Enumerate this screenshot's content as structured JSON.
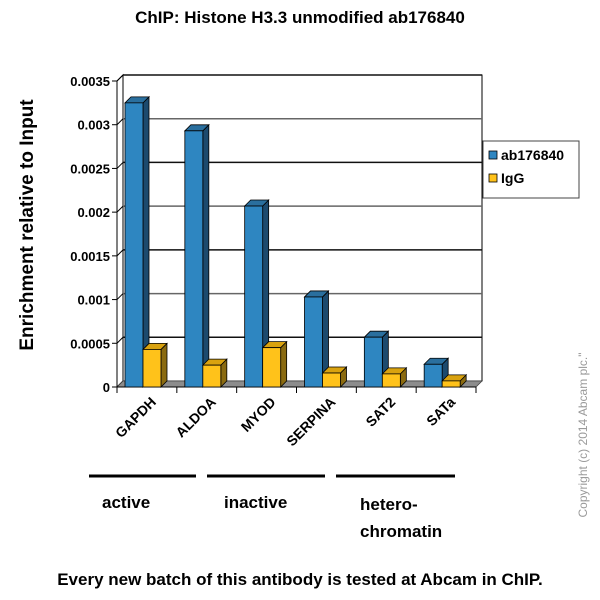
{
  "title": "ChIP: Histone H3.3 unmodified ab176840",
  "footer": "Every new batch of this antibody is tested at Abcam in ChIP.",
  "copyright": "Copyright (c) 2014 Abcam plc.\"",
  "colors": {
    "series1_front": "#2e86c1",
    "series1_side": "#1c4a6e",
    "series1_top": "#2a6f9e",
    "series2_front": "#ffc21a",
    "series2_side": "#8a6a10",
    "series2_top": "#d9a20f",
    "floor": "#8c8c8c"
  },
  "chart_data": {
    "type": "bar",
    "style": "3d-clustered-column",
    "title": "ChIP: Histone H3.3 unmodified ab176840",
    "xlabel": "",
    "ylabel": "Enrichment relative to Input",
    "categories": [
      "GAPDH",
      "ALDOA",
      "MYOD",
      "SERPINA",
      "SAT2",
      "SATa"
    ],
    "series": [
      {
        "name": "ab176840",
        "values": [
          0.00325,
          0.00293,
          0.00207,
          0.00103,
          0.00057,
          0.00026
        ]
      },
      {
        "name": "IgG",
        "values": [
          0.00043,
          0.00025,
          0.00045,
          0.00016,
          0.00015,
          7e-05
        ]
      }
    ],
    "ylim": [
      0,
      0.0035
    ],
    "yticks": [
      "0",
      "0.0005",
      "0.001",
      "0.0015",
      "0.002",
      "0.0025",
      "0.003",
      "0.0035"
    ],
    "grid": true,
    "legend_position": "right",
    "groups": [
      {
        "label": "active",
        "categories": [
          "GAPDH",
          "ALDOA"
        ]
      },
      {
        "label": "inactive",
        "categories": [
          "MYOD",
          "SERPINA"
        ]
      },
      {
        "label_line1": "hetero-",
        "label_line2": "chromatin",
        "label": "hetero-chromatin",
        "categories": [
          "SAT2",
          "SATa"
        ]
      }
    ]
  }
}
